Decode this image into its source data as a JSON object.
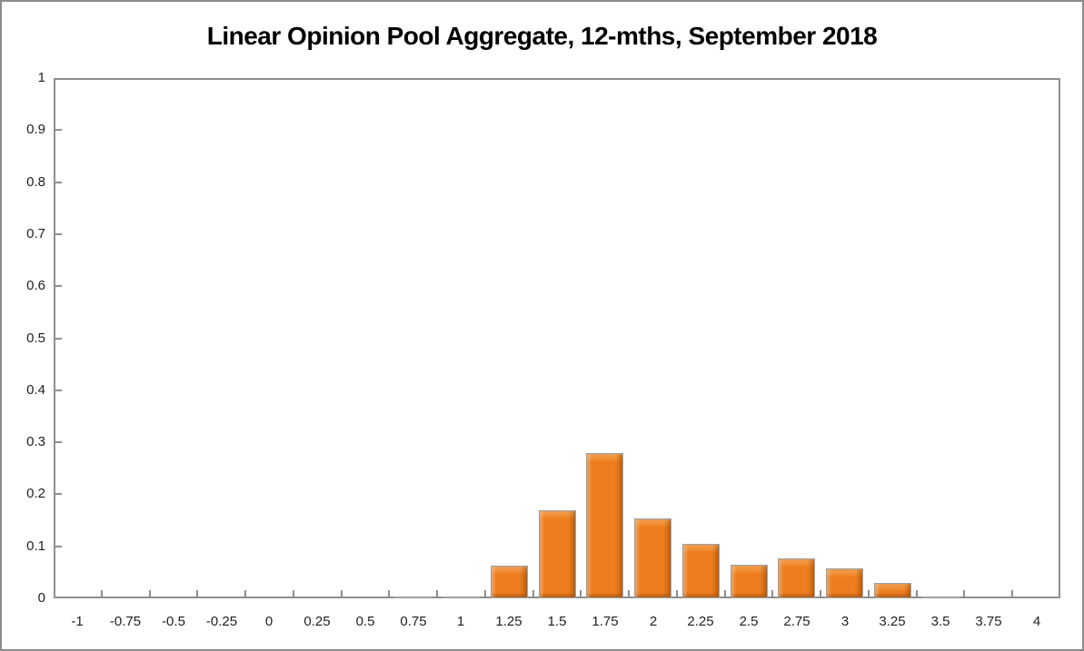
{
  "chart_data": {
    "type": "bar",
    "title": "Linear Opinion Pool Aggregate, 12-mths, September 2018",
    "xlabel": "",
    "ylabel": "",
    "categories": [
      "-1",
      "-0.75",
      "-0.5",
      "-0.25",
      "0",
      "0.25",
      "0.5",
      "0.75",
      "1",
      "1.25",
      "1.5",
      "1.75",
      "2",
      "2.25",
      "2.5",
      "2.75",
      "3",
      "3.25",
      "3.5",
      "3.75",
      "4"
    ],
    "values": [
      0,
      0,
      0,
      0,
      0,
      0,
      0,
      0.003,
      0.003,
      0.062,
      0.17,
      0.28,
      0.153,
      0.104,
      0.065,
      0.076,
      0.057,
      0.03,
      0.003,
      0,
      0
    ],
    "ylim": [
      0,
      1
    ],
    "ytick_step": 0.1,
    "ytick_labels": [
      "0",
      "0.1",
      "0.2",
      "0.3",
      "0.4",
      "0.5",
      "0.6",
      "0.7",
      "0.8",
      "0.9",
      "1"
    ],
    "grid": false,
    "legend": null,
    "tick_style": "inside",
    "colors": {
      "bar_fill": "#ED7D1E",
      "bar_highlight": "#FBA551",
      "bar_shadow": "#C96410",
      "bar_border": "#A0A0A0",
      "axis": "#8F8F8F",
      "labels": "#1F1F1F",
      "title": "#000000",
      "frame_border": "#8C8C8C"
    }
  }
}
